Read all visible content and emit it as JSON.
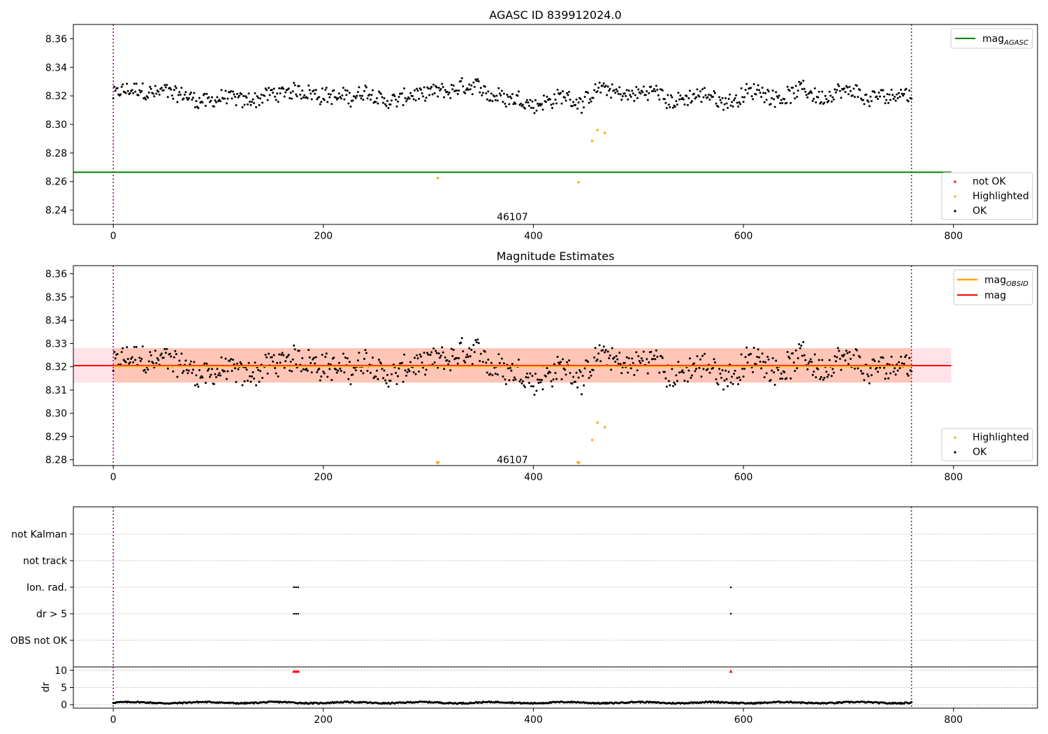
{
  "chart_data": [
    {
      "type": "scatter",
      "title": "AGASC ID 839912024.0",
      "xlim": [
        -38,
        880
      ],
      "ylim": [
        8.23,
        8.37
      ],
      "xticks": [
        "0",
        "200",
        "400",
        "600",
        "800"
      ],
      "xtick_values": [
        0,
        200,
        400,
        600,
        800
      ],
      "yticks": [
        "8.24",
        "8.26",
        "8.28",
        "8.30",
        "8.32",
        "8.34",
        "8.36"
      ],
      "ytick_values": [
        8.24,
        8.26,
        8.28,
        8.3,
        8.32,
        8.34,
        8.36
      ],
      "obsid_label": "46107",
      "obsid_label_pos": [
        380,
        8.233
      ],
      "obsid_bounds": [
        0,
        760
      ],
      "hline": {
        "name": "mag_AGASC",
        "label": "mag",
        "sub": "AGASC",
        "y": 8.2665,
        "x": [
          -38,
          798
        ],
        "color": "#008000"
      },
      "ok_series": {
        "name": "OK",
        "color": "#000000",
        "base": 8.32,
        "amplitude": 0.012
      },
      "highlighted": {
        "name": "Highlighted",
        "color": "#ffa500",
        "x": [
          309,
          443,
          456,
          461,
          468
        ],
        "y": [
          8.2625,
          8.2595,
          8.2885,
          8.296,
          8.294
        ]
      },
      "legend_top": [
        {
          "label": "mag",
          "sub": "AGASC",
          "color": "#008000",
          "kind": "line"
        }
      ],
      "legend_bottom": [
        {
          "label": "not OK",
          "color": "#ff0000",
          "kind": "dot"
        },
        {
          "label": "Highlighted",
          "color": "#ffa500",
          "kind": "dot"
        },
        {
          "label": "OK",
          "color": "#000000",
          "kind": "dot"
        }
      ]
    },
    {
      "type": "scatter",
      "title": "Magnitude Estimates",
      "xlim": [
        -38,
        880
      ],
      "ylim": [
        8.2775,
        8.3635
      ],
      "xticks": [
        "0",
        "200",
        "400",
        "600",
        "800"
      ],
      "xtick_values": [
        0,
        200,
        400,
        600,
        800
      ],
      "yticks": [
        "8.28",
        "8.29",
        "8.30",
        "8.31",
        "8.32",
        "8.33",
        "8.34",
        "8.35",
        "8.36"
      ],
      "ytick_values": [
        8.28,
        8.29,
        8.3,
        8.31,
        8.32,
        8.33,
        8.34,
        8.35,
        8.36
      ],
      "obsid_label": "46107",
      "obsid_label_pos": [
        380,
        8.2785
      ],
      "obsid_bounds": [
        0,
        760
      ],
      "mag_line": {
        "name": "mag",
        "y": 8.3205,
        "x": [
          -38,
          798
        ],
        "color": "#ff0000"
      },
      "mag_obsid_line": {
        "name": "mag_OBSID",
        "y": 8.3202,
        "x": [
          0,
          760
        ],
        "color": "#ffa500"
      },
      "band_outer": {
        "y": [
          8.3132,
          8.328
        ],
        "x": [
          -38,
          798
        ],
        "color": "#ffc0cb"
      },
      "band_inner": {
        "y": [
          8.3132,
          8.328
        ],
        "x": [
          0,
          760
        ],
        "color": "#ffa07a"
      },
      "ok_series": {
        "name": "OK",
        "color": "#000000",
        "base": 8.32,
        "amplitude": 0.012
      },
      "highlighted": {
        "name": "Highlighted",
        "color": "#ffa500",
        "x": [
          456,
          461,
          468
        ],
        "y": [
          8.2885,
          8.296,
          8.294
        ]
      },
      "below_range_markers": {
        "x": [
          309,
          443
        ],
        "color": "#ffa500"
      },
      "legend_top": [
        {
          "label": "mag",
          "sub": "OBSID",
          "color": "#ffa500",
          "kind": "line"
        },
        {
          "label": "mag",
          "sub": "",
          "color": "#ff0000",
          "kind": "line"
        }
      ],
      "legend_bottom": [
        {
          "label": "Highlighted",
          "color": "#ffa500",
          "kind": "dot"
        },
        {
          "label": "OK",
          "color": "#000000",
          "kind": "dot"
        }
      ]
    },
    {
      "type": "scatter",
      "title": "",
      "xlim": [
        -38,
        880
      ],
      "categories": [
        "not Kalman",
        "not track",
        "Ion. rad.",
        "dr > 5",
        "OBS not OK"
      ],
      "flags": {
        "not Kalman": [],
        "not track": [],
        "Ion. rad.": [
          172,
          174,
          176,
          588
        ],
        "dr > 5": [
          172,
          174,
          176,
          588
        ],
        "OBS not OK": []
      },
      "obsid_bounds": [
        0,
        760
      ]
    },
    {
      "type": "scatter",
      "title": "",
      "ylabel": "dr",
      "xlim": [
        -38,
        880
      ],
      "ylim": [
        -1,
        11
      ],
      "xticks": [
        "0",
        "200",
        "400",
        "600",
        "800"
      ],
      "xtick_values": [
        0,
        200,
        400,
        600,
        800
      ],
      "yticks": [
        "0",
        "5",
        "10"
      ],
      "ytick_values": [
        0,
        5,
        10
      ],
      "dr_series": {
        "name": "dr",
        "color": "#000000",
        "base": 0.6,
        "amplitude": 0.35
      },
      "clipped_markers": {
        "x": [
          172,
          174,
          176,
          588
        ],
        "y": 9.7,
        "color": "#ff0000"
      },
      "obsid_bounds": [
        0,
        760
      ]
    }
  ]
}
